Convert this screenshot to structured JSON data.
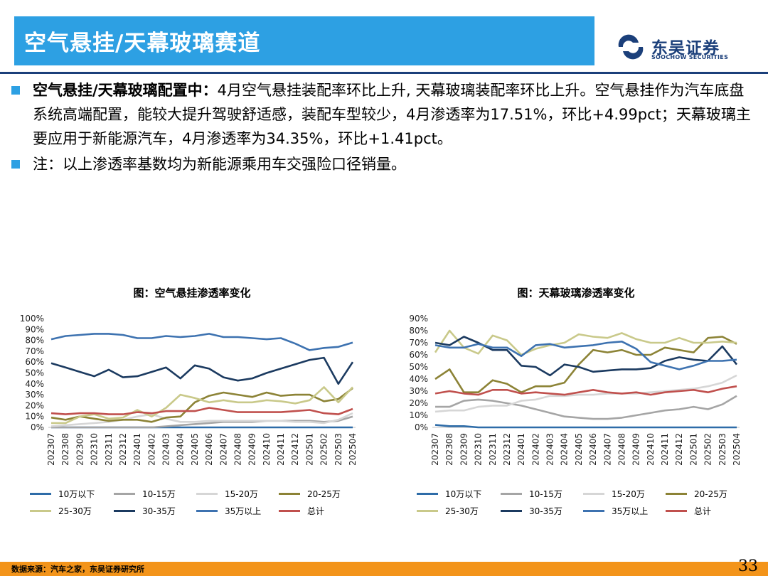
{
  "header": {
    "title": "空气悬挂/天幕玻璃赛道"
  },
  "logo": {
    "cn": "东吴证券",
    "en": "SOOCHOW SECURITIES"
  },
  "bullets": [
    {
      "bold": "空气悬挂/天幕玻璃配置中：",
      "text": "4月空气悬挂装配率环比上升, 天幕玻璃装配率环比上升。空气悬挂作为汽车底盘系统高端配置，能较大提升驾驶舒适感，装配车型较少，4月渗透率为17.51%，环比+4.99pct；天幕玻璃主要应用于新能源汽车，4月渗透率为34.35%，环比+1.41pct。"
    },
    {
      "bold": "",
      "text": "注：以上渗透率基数均为新能源乘用车交强险口径销量。"
    }
  ],
  "colors": {
    "title_bar": "#2da0e3",
    "brand_navy": "#1b3f7a",
    "footer": "#f3941a",
    "series": [
      "#2e6ca8",
      "#a5a5a5",
      "#d6d6d6",
      "#8c8336",
      "#c9c98a",
      "#1b3a60",
      "#3d72b0",
      "#c0504d"
    ]
  },
  "chart_data": [
    {
      "type": "line",
      "title": "图：空气悬挂渗透率变化",
      "categories": [
        "202307",
        "202308",
        "202309",
        "202310",
        "202311",
        "202312",
        "202401",
        "202402",
        "202403",
        "202404",
        "202405",
        "202406",
        "202407",
        "202408",
        "202409",
        "202410",
        "202411",
        "202412",
        "202501",
        "202502",
        "202503",
        "202504"
      ],
      "ylim": [
        0,
        100
      ],
      "yticks": [
        "0%",
        "10%",
        "20%",
        "30%",
        "40%",
        "50%",
        "60%",
        "70%",
        "80%",
        "90%",
        "100%"
      ],
      "legend_position": "bottom",
      "series": [
        {
          "name": "10万以下",
          "values": [
            0,
            0,
            0,
            0,
            0,
            0,
            0,
            0,
            0,
            0,
            0,
            0,
            0,
            0,
            0,
            0,
            0,
            0,
            0,
            0,
            0,
            0
          ]
        },
        {
          "name": "10-15万",
          "values": [
            0,
            0,
            0,
            0,
            0,
            0,
            0,
            0,
            1,
            2,
            3,
            4,
            5,
            5,
            5,
            6,
            6,
            6,
            6,
            5,
            6,
            10
          ]
        },
        {
          "name": "15-20万",
          "values": [
            1,
            2,
            3,
            4,
            5,
            7,
            10,
            12,
            8,
            5,
            5,
            6,
            6,
            6,
            6,
            6,
            6,
            5,
            5,
            4,
            7,
            13
          ]
        },
        {
          "name": "20-25万",
          "values": [
            9,
            7,
            10,
            8,
            6,
            7,
            7,
            5,
            9,
            10,
            23,
            29,
            32,
            30,
            28,
            32,
            29,
            30,
            30,
            24,
            26,
            36
          ]
        },
        {
          "name": "25-30万",
          "values": [
            4,
            4,
            10,
            12,
            8,
            9,
            16,
            10,
            18,
            30,
            27,
            23,
            25,
            23,
            23,
            25,
            24,
            22,
            25,
            37,
            23,
            37
          ]
        },
        {
          "name": "30-35万",
          "values": [
            59,
            55,
            51,
            47,
            53,
            46,
            47,
            51,
            55,
            45,
            57,
            54,
            46,
            43,
            45,
            50,
            54,
            58,
            62,
            64,
            40,
            60
          ]
        },
        {
          "name": "35万以上",
          "values": [
            81,
            84,
            85,
            86,
            86,
            85,
            82,
            82,
            84,
            83,
            84,
            86,
            83,
            83,
            82,
            81,
            82,
            77,
            71,
            73,
            74,
            78
          ]
        },
        {
          "name": "总计",
          "values": [
            13,
            12,
            13,
            13,
            12,
            12,
            14,
            13,
            15,
            15,
            15,
            18,
            16,
            14,
            14,
            14,
            14,
            15,
            16,
            13,
            12,
            17
          ]
        }
      ]
    },
    {
      "type": "line",
      "title": "图：天幕玻璃渗透率变化",
      "categories": [
        "202307",
        "202308",
        "202309",
        "202310",
        "202311",
        "202312",
        "202401",
        "202402",
        "202403",
        "202404",
        "202405",
        "202406",
        "202407",
        "202408",
        "202409",
        "202410",
        "202411",
        "202412",
        "202501",
        "202502",
        "202503",
        "202504"
      ],
      "ylim": [
        0,
        90
      ],
      "yticks": [
        "0%",
        "10%",
        "20%",
        "30%",
        "40%",
        "50%",
        "60%",
        "70%",
        "80%",
        "90%"
      ],
      "legend_position": "bottom",
      "series": [
        {
          "name": "10万以下",
          "values": [
            2,
            1,
            1,
            0,
            0,
            0,
            0,
            0,
            0,
            0,
            0,
            0,
            0,
            0,
            0,
            0,
            0,
            0,
            0,
            0,
            0,
            0
          ]
        },
        {
          "name": "10-15万",
          "values": [
            17,
            17,
            22,
            23,
            22,
            20,
            18,
            15,
            12,
            9,
            8,
            7,
            7,
            8,
            10,
            12,
            14,
            15,
            17,
            15,
            19,
            26
          ]
        },
        {
          "name": "15-20万",
          "values": [
            13,
            14,
            14,
            17,
            18,
            18,
            22,
            23,
            26,
            26,
            27,
            27,
            28,
            28,
            28,
            29,
            30,
            31,
            32,
            34,
            37,
            43
          ]
        },
        {
          "name": "20-25万",
          "values": [
            40,
            48,
            29,
            29,
            39,
            36,
            29,
            34,
            34,
            37,
            52,
            64,
            62,
            64,
            60,
            60,
            66,
            64,
            62,
            74,
            75,
            69
          ]
        },
        {
          "name": "25-30万",
          "values": [
            62,
            80,
            66,
            61,
            76,
            72,
            60,
            65,
            68,
            70,
            77,
            75,
            74,
            78,
            73,
            70,
            70,
            74,
            70,
            70,
            71,
            70
          ]
        },
        {
          "name": "30-35万",
          "values": [
            70,
            68,
            75,
            70,
            64,
            64,
            51,
            50,
            43,
            52,
            50,
            46,
            47,
            48,
            48,
            49,
            55,
            58,
            56,
            55,
            67,
            52
          ]
        },
        {
          "name": "35万以上",
          "values": [
            68,
            66,
            66,
            69,
            66,
            66,
            59,
            68,
            69,
            66,
            67,
            68,
            70,
            71,
            65,
            54,
            51,
            48,
            51,
            55,
            55,
            56
          ]
        },
        {
          "name": "总计",
          "values": [
            28,
            30,
            28,
            27,
            31,
            31,
            28,
            29,
            28,
            27,
            29,
            31,
            29,
            28,
            29,
            27,
            29,
            30,
            31,
            29,
            32,
            34
          ]
        }
      ]
    }
  ],
  "footer": {
    "source": "数据来源：汽车之家，东吴证券研究所",
    "page": "33"
  }
}
